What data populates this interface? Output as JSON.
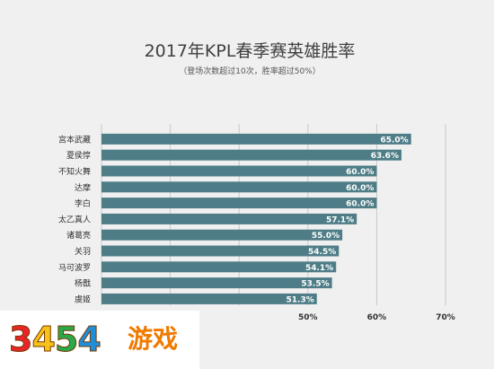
{
  "chart_data": {
    "type": "bar",
    "orientation": "horizontal",
    "title": "2017年KPL春季赛英雄胜率",
    "subtitle": "（登场次数超过10次，胜率超过50%）",
    "categories": [
      "宫本武藏",
      "夏侯惇",
      "不知火舞",
      "达摩",
      "李白",
      "太乙真人",
      "诸葛亮",
      "关羽",
      "马可波罗",
      "杨戬",
      "虞姬"
    ],
    "values": [
      65.0,
      63.6,
      60.0,
      60.0,
      60.0,
      57.1,
      55.0,
      54.5,
      54.1,
      53.5,
      51.3
    ],
    "value_labels": [
      "65.0%",
      "63.6%",
      "60.0%",
      "60.0%",
      "60.0%",
      "57.1%",
      "55.0%",
      "54.5%",
      "54.1%",
      "53.5%",
      "51.3%"
    ],
    "xaxis_ticks": [
      20,
      30,
      40,
      50,
      60,
      70
    ],
    "xaxis_tick_labels": [
      "",
      "",
      "",
      "50%",
      "60%",
      "70%"
    ],
    "xlim": [
      20,
      70
    ],
    "grid": true,
    "bar_color": "#4e7d87",
    "grid_color": "#c8c8c8"
  },
  "watermark": {
    "digits": [
      "3",
      "4",
      "5",
      "4"
    ],
    "digit_colors": [
      "#e8262a",
      "#f7c21a",
      "#2aa84a",
      "#1f8fd8"
    ],
    "text": "游戏",
    "text_color": "#f07a00"
  }
}
